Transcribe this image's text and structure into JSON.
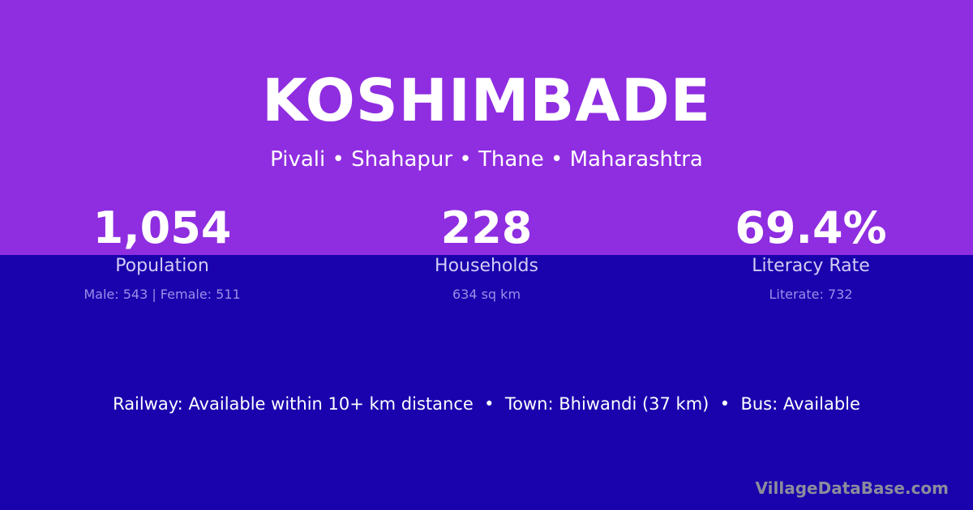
{
  "village": "KOSHIMBADE",
  "location": "Pivali • Shahapur • Thane • Maharashtra",
  "stats": [
    {
      "value": "1,054",
      "label": "Population",
      "detail": "Male: 543 | Female: 511"
    },
    {
      "value": "228",
      "label": "Households",
      "detail": "634 sq km"
    },
    {
      "value": "69.4%",
      "label": "Literacy Rate",
      "detail": "Literate: 732"
    }
  ],
  "connectivity": "Railway: Available within 10+ km distance  •  Town: Bhiwandi (37 km)  •  Bus: Available",
  "brand": "VillageDataBase.com",
  "colors": {
    "top": "#8f2de0",
    "bottom": "#1a02ad"
  }
}
